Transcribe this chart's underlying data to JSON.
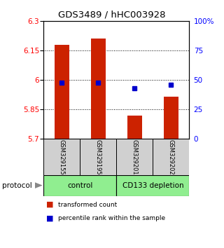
{
  "title": "GDS3489 / hHC003928",
  "samples": [
    "GSM329155",
    "GSM329195",
    "GSM329201",
    "GSM329202"
  ],
  "bar_bottom": 5.7,
  "transformed_counts": [
    6.18,
    6.21,
    5.82,
    5.915
  ],
  "percentile_ranks": [
    48,
    48,
    43,
    46
  ],
  "ylim_left": [
    5.7,
    6.3
  ],
  "ylim_right": [
    0,
    100
  ],
  "yticks_left": [
    5.7,
    5.85,
    6.0,
    6.15,
    6.3
  ],
  "ytick_labels_left": [
    "5.7",
    "5.85",
    "6",
    "6.15",
    "6.3"
  ],
  "yticks_right": [
    0,
    25,
    50,
    75,
    100
  ],
  "ytick_labels_right": [
    "0",
    "25",
    "50",
    "75",
    "100%"
  ],
  "hgrid_values": [
    5.85,
    6.0,
    6.15
  ],
  "bar_color": "#cc2200",
  "dot_color": "#0000cc",
  "group_color": "#90ee90",
  "sample_box_color": "#d0d0d0",
  "legend_items": [
    {
      "color": "#cc2200",
      "label": "transformed count"
    },
    {
      "color": "#0000cc",
      "label": "percentile rank within the sample"
    }
  ]
}
